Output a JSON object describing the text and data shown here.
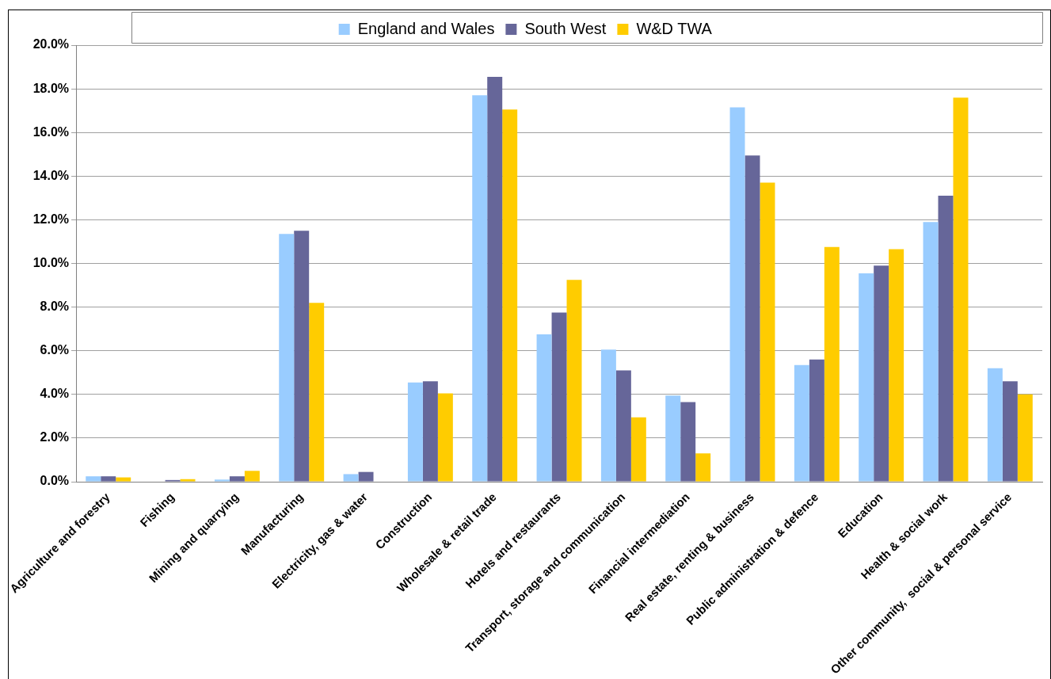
{
  "chart_data": {
    "type": "bar",
    "categories": [
      "Agriculture and forestry",
      "Fishing",
      "Mining and quarrying",
      "Manufacturing",
      "Electricity, gas & water",
      "Construction",
      "Wholesale & retail trade",
      "Hotels and restaurants",
      "Transport, storage and communication",
      "Financial intermediation",
      "Real estate, renting & business",
      "Public administration & defence",
      "Education",
      "Health & social work",
      "Other community,  social & personal service"
    ],
    "series": [
      {
        "name": "England and Wales",
        "color": "#99ccff",
        "values": [
          0.25,
          0,
          0.1,
          11.35,
          0.35,
          4.55,
          17.7,
          6.75,
          6.05,
          3.95,
          17.15,
          5.35,
          9.55,
          11.9,
          5.2
        ]
      },
      {
        "name": "South West",
        "color": "#666699",
        "values": [
          0.25,
          0.08,
          0.25,
          11.5,
          0.45,
          4.6,
          18.55,
          7.75,
          5.1,
          3.65,
          14.95,
          5.6,
          9.9,
          13.1,
          4.6
        ]
      },
      {
        "name": "W&D TWA",
        "color": "#ffcc00",
        "values": [
          0.2,
          0.12,
          0.5,
          8.2,
          0,
          4.05,
          17.05,
          9.25,
          2.95,
          1.3,
          13.7,
          10.75,
          10.65,
          17.6,
          4.0
        ]
      }
    ],
    "ylim": [
      0,
      20
    ],
    "yticks": [
      {
        "value": 0,
        "label": "0.0%"
      },
      {
        "value": 2,
        "label": "2.0%"
      },
      {
        "value": 4,
        "label": "4.0%"
      },
      {
        "value": 6,
        "label": "6.0%"
      },
      {
        "value": 8,
        "label": "8.0%"
      },
      {
        "value": 10,
        "label": "10.0%"
      },
      {
        "value": 12,
        "label": "12.0%"
      },
      {
        "value": 14,
        "label": "14.0%"
      },
      {
        "value": 16,
        "label": "16.0%"
      },
      {
        "value": 18,
        "label": "18.0%"
      },
      {
        "value": 20,
        "label": "20.0%"
      }
    ],
    "grid": "y",
    "legend": "top"
  }
}
